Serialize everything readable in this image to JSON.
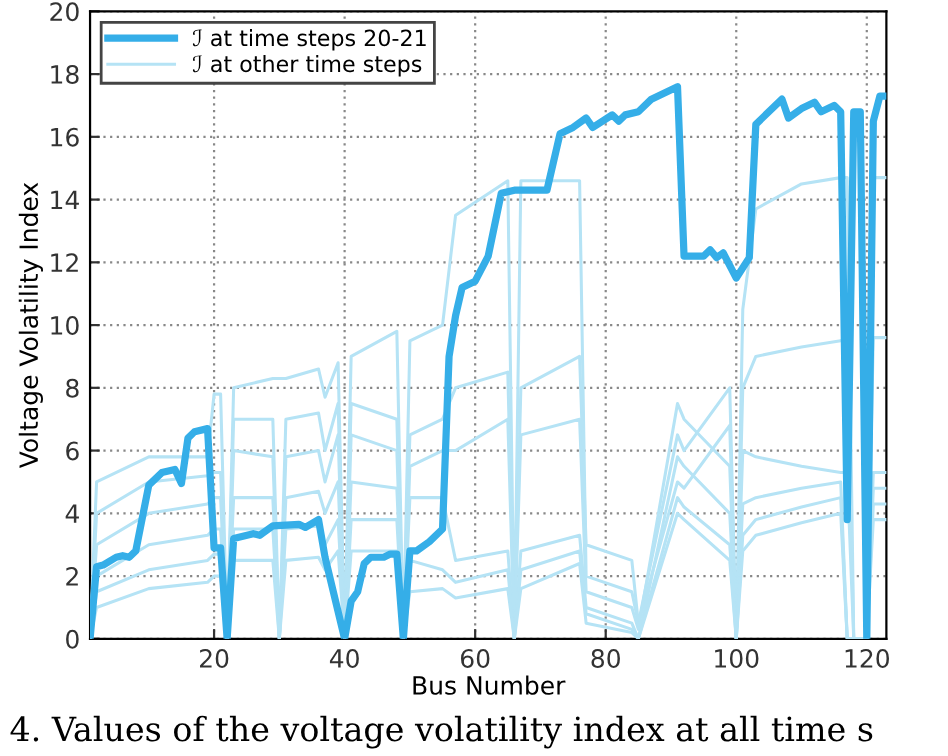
{
  "chart_data": {
    "type": "line",
    "xlabel": "Bus Number",
    "ylabel": "Voltage Volatility Index",
    "xlim": [
      1,
      123
    ],
    "ylim": [
      0,
      20
    ],
    "xticks": [
      20,
      40,
      60,
      80,
      100,
      120
    ],
    "yticks": [
      0,
      2,
      4,
      6,
      8,
      10,
      12,
      14,
      16,
      18,
      20
    ],
    "grid": true,
    "legend": "top left",
    "line_style": "solid",
    "annotations": [
      "4. Values of the voltage volatility index at all time s"
    ],
    "series": [
      {
        "name": "ℐ at time steps 20-21",
        "color": "#35aee8",
        "x": [
          1,
          2,
          3,
          5,
          6,
          7,
          8,
          10,
          11,
          12,
          14,
          15,
          16,
          17,
          19,
          20,
          21,
          22,
          23,
          26,
          27,
          29,
          33,
          34,
          36,
          37,
          40,
          41,
          42,
          43,
          44,
          46,
          47,
          48,
          49,
          50,
          51,
          53,
          55,
          56,
          57,
          58,
          60,
          62,
          64,
          66,
          71,
          73,
          75,
          77,
          78,
          81,
          82,
          83,
          85,
          87,
          91,
          92,
          95,
          96,
          97,
          98,
          100,
          102,
          103,
          104,
          107,
          108,
          110,
          112,
          113,
          115,
          116,
          117,
          118,
          119,
          120,
          121,
          122,
          123
        ],
        "values": [
          0,
          2.3,
          2.35,
          2.6,
          2.65,
          2.6,
          2.8,
          4.9,
          5.1,
          5.3,
          5.4,
          4.95,
          6.4,
          6.6,
          6.7,
          2.9,
          2.9,
          0,
          3.2,
          3.35,
          3.3,
          3.6,
          3.65,
          3.55,
          3.8,
          2.6,
          0,
          1.2,
          1.5,
          2.4,
          2.6,
          2.6,
          2.7,
          2.7,
          0,
          2.8,
          2.8,
          3.1,
          3.5,
          9.0,
          10.3,
          11.2,
          11.4,
          12.2,
          14.2,
          14.3,
          14.3,
          16.1,
          16.3,
          16.6,
          16.3,
          16.7,
          16.5,
          16.7,
          16.8,
          17.2,
          17.6,
          12.2,
          12.2,
          12.4,
          12.15,
          12.3,
          11.5,
          12.15,
          16.4,
          16.6,
          17.2,
          16.6,
          16.9,
          17.1,
          16.8,
          17.0,
          16.8,
          3.8,
          16.8,
          16.8,
          0,
          16.5,
          17.3,
          17.3
        ]
      },
      {
        "name": "ℐ at other time steps",
        "color": "#b5e3f5",
        "x": [
          1,
          2,
          10,
          19,
          20,
          21,
          22,
          23,
          29,
          30,
          31,
          36,
          37,
          39,
          40,
          41,
          48,
          49,
          50,
          55,
          57,
          65,
          66,
          67,
          76,
          77,
          84,
          85,
          91,
          92,
          99,
          100,
          101,
          103,
          110,
          116,
          117,
          118,
          120,
          121,
          123
        ],
        "values": [
          0,
          5.0,
          5.8,
          5.8,
          7.8,
          7.8,
          0,
          8.0,
          8.3,
          8.3,
          8.3,
          8.6,
          7.7,
          8.8,
          0,
          9.0,
          9.8,
          0,
          9.5,
          10.0,
          13.5,
          14.6,
          0,
          14.6,
          14.6,
          2.0,
          1.5,
          0.5,
          6.5,
          6.0,
          8.0,
          0,
          10.5,
          13.7,
          14.5,
          14.7,
          14.7,
          0,
          0,
          14.7,
          14.7
        ]
      },
      {
        "color": "#b5e3f5",
        "x": [
          1,
          2,
          10,
          19,
          20,
          21,
          22,
          23,
          29,
          30,
          31,
          36,
          37,
          39,
          40,
          41,
          48,
          49,
          50,
          55,
          57,
          65,
          66,
          67,
          76,
          77,
          84,
          85,
          91,
          92,
          99,
          100,
          101,
          103,
          110,
          116,
          117,
          118,
          120,
          121,
          123
        ],
        "values": [
          0,
          4.0,
          5.0,
          5.2,
          5.3,
          5.3,
          0,
          7.0,
          7.0,
          0,
          7.0,
          7.2,
          6.0,
          7.5,
          0,
          7.5,
          7.0,
          0,
          6.5,
          7.0,
          8.0,
          8.5,
          0,
          8.0,
          9.0,
          3.0,
          2.5,
          0.5,
          5.0,
          4.8,
          6.8,
          0,
          8.0,
          9.0,
          9.3,
          9.5,
          9.6,
          0,
          0,
          9.6,
          9.6
        ]
      },
      {
        "color": "#b5e3f5",
        "x": [
          1,
          2,
          10,
          19,
          20,
          21,
          22,
          23,
          29,
          30,
          31,
          36,
          37,
          39,
          40,
          41,
          48,
          49,
          50,
          55,
          57,
          65,
          66,
          67,
          76,
          77,
          84,
          85,
          91,
          92,
          99,
          100,
          101,
          103,
          110,
          116,
          117,
          118,
          120,
          121,
          123
        ],
        "values": [
          0,
          3.0,
          4.0,
          4.3,
          4.5,
          4.5,
          0,
          6.0,
          5.8,
          0,
          5.8,
          6.0,
          5.0,
          6.5,
          0,
          6.5,
          6.0,
          0,
          5.5,
          6.0,
          6.0,
          7.0,
          0,
          6.5,
          7.0,
          1.5,
          1.0,
          0.3,
          7.5,
          7.0,
          5.5,
          0,
          6.0,
          5.8,
          5.5,
          5.3,
          5.3,
          0,
          0,
          5.3,
          5.3
        ]
      },
      {
        "color": "#b5e3f5",
        "x": [
          1,
          2,
          10,
          19,
          20,
          21,
          22,
          23,
          29,
          30,
          31,
          36,
          37,
          39,
          40,
          41,
          48,
          49,
          50,
          55,
          57,
          65,
          66,
          67,
          76,
          77,
          84,
          85,
          91,
          92,
          99,
          100,
          101,
          103,
          110,
          116,
          117,
          118,
          120,
          121,
          123
        ],
        "values": [
          0,
          2.0,
          3.0,
          3.3,
          3.5,
          3.5,
          0,
          4.5,
          4.5,
          0,
          4.5,
          4.7,
          4.0,
          5.0,
          0,
          5.0,
          4.8,
          0,
          4.5,
          4.5,
          2.5,
          2.8,
          0,
          2.8,
          3.3,
          1.0,
          0.5,
          0,
          5.8,
          5.5,
          4.0,
          0,
          4.3,
          4.5,
          4.8,
          5.0,
          0,
          0,
          0,
          4.8,
          4.8
        ]
      },
      {
        "color": "#b5e3f5",
        "x": [
          1,
          2,
          10,
          19,
          20,
          21,
          22,
          23,
          29,
          30,
          31,
          36,
          37,
          39,
          40,
          41,
          48,
          49,
          50,
          55,
          57,
          65,
          66,
          67,
          76,
          77,
          84,
          85,
          91,
          92,
          99,
          100,
          101,
          103,
          110,
          116,
          117,
          118,
          120,
          121,
          123
        ],
        "values": [
          0,
          1.5,
          2.2,
          2.5,
          2.7,
          2.7,
          0,
          3.5,
          3.5,
          0,
          3.5,
          3.6,
          3.0,
          3.8,
          0,
          3.8,
          3.8,
          0,
          2.5,
          2.2,
          1.8,
          2.2,
          0,
          2.2,
          2.8,
          0.8,
          0.3,
          0,
          4.5,
          4.2,
          3.0,
          0,
          3.3,
          3.8,
          4.2,
          4.5,
          0,
          0,
          0,
          4.3,
          4.3
        ]
      },
      {
        "color": "#b5e3f5",
        "x": [
          1,
          2,
          10,
          19,
          20,
          21,
          22,
          23,
          29,
          30,
          31,
          36,
          37,
          39,
          40,
          41,
          48,
          49,
          50,
          55,
          57,
          65,
          66,
          67,
          76,
          77,
          84,
          85,
          91,
          92,
          99,
          100,
          101,
          103,
          110,
          116,
          117,
          118,
          120,
          121,
          123
        ],
        "values": [
          0,
          1.0,
          1.6,
          1.8,
          2.0,
          2.0,
          0,
          2.5,
          2.5,
          0,
          2.5,
          2.6,
          2.2,
          2.8,
          0,
          2.8,
          2.8,
          0,
          1.5,
          1.6,
          1.3,
          1.6,
          0,
          1.6,
          2.4,
          0.5,
          0.2,
          0,
          4.0,
          3.8,
          2.5,
          0,
          2.8,
          3.3,
          3.7,
          4.0,
          0,
          0,
          0,
          3.8,
          3.8
        ]
      }
    ]
  }
}
